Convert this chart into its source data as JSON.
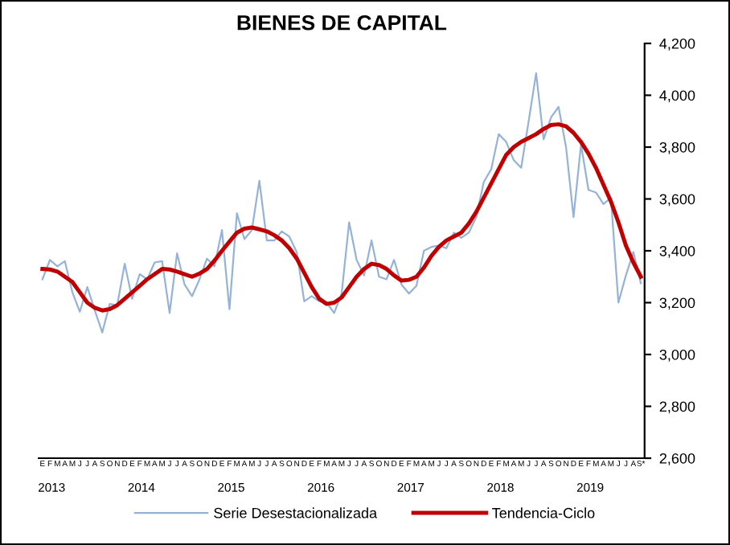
{
  "chart_data": {
    "type": "line",
    "title": "BIENES DE CAPITAL",
    "categories": [
      "E",
      "F",
      "M",
      "A",
      "M",
      "J",
      "J",
      "A",
      "S",
      "O",
      "N",
      "D",
      "E",
      "F",
      "M",
      "A",
      "M",
      "J",
      "J",
      "A",
      "S",
      "O",
      "N",
      "D",
      "E",
      "F",
      "M",
      "A",
      "M",
      "J",
      "J",
      "A",
      "S",
      "O",
      "N",
      "D",
      "E",
      "F",
      "M",
      "A",
      "M",
      "J",
      "J",
      "A",
      "S",
      "O",
      "N",
      "D",
      "E",
      "F",
      "M",
      "A",
      "M",
      "J",
      "J",
      "A",
      "S",
      "O",
      "N",
      "D",
      "E",
      "F",
      "M",
      "A",
      "M",
      "J",
      "J",
      "A",
      "S",
      "O",
      "N",
      "D",
      "E",
      "F",
      "M",
      "A",
      "M",
      "J",
      "J",
      "A",
      "S*"
    ],
    "series": [
      {
        "name": "Serie Desestacionalizada",
        "color": "#95b3d7",
        "values": [
          3290,
          3365,
          3340,
          3360,
          3240,
          3165,
          3260,
          3170,
          3085,
          3195,
          3190,
          3350,
          3215,
          3310,
          3290,
          3355,
          3360,
          3160,
          3390,
          3270,
          3225,
          3290,
          3370,
          3340,
          3480,
          3175,
          3545,
          3445,
          3480,
          3670,
          3440,
          3440,
          3475,
          3455,
          3395,
          3205,
          3225,
          3205,
          3200,
          3160,
          3235,
          3510,
          3365,
          3305,
          3440,
          3300,
          3290,
          3365,
          3270,
          3235,
          3265,
          3400,
          3415,
          3420,
          3410,
          3470,
          3450,
          3470,
          3530,
          3665,
          3715,
          3850,
          3820,
          3750,
          3720,
          3900,
          4085,
          3830,
          3915,
          3955,
          3800,
          3530,
          3810,
          3635,
          3625,
          3580,
          3605,
          3200,
          3305,
          3395,
          3275
        ]
      },
      {
        "name": "Tendencia-Ciclo",
        "color": "#c00000",
        "values": [
          3330,
          3328,
          3320,
          3300,
          3280,
          3240,
          3200,
          3180,
          3170,
          3175,
          3190,
          3215,
          3240,
          3265,
          3290,
          3310,
          3330,
          3328,
          3320,
          3310,
          3300,
          3312,
          3330,
          3362,
          3400,
          3435,
          3470,
          3485,
          3490,
          3483,
          3475,
          3460,
          3440,
          3410,
          3370,
          3315,
          3260,
          3215,
          3195,
          3200,
          3220,
          3260,
          3300,
          3330,
          3350,
          3345,
          3330,
          3305,
          3285,
          3288,
          3300,
          3335,
          3380,
          3415,
          3440,
          3455,
          3470,
          3505,
          3550,
          3605,
          3660,
          3715,
          3770,
          3800,
          3820,
          3835,
          3850,
          3870,
          3885,
          3888,
          3880,
          3855,
          3820,
          3775,
          3720,
          3655,
          3590,
          3510,
          3420,
          3355,
          3300
        ]
      }
    ],
    "ylim": [
      2600,
      4200
    ],
    "yticks": [
      {
        "value": 2600,
        "label": "2,600"
      },
      {
        "value": 2800,
        "label": "2,800"
      },
      {
        "value": 3000,
        "label": "3,000"
      },
      {
        "value": 3200,
        "label": "3,200"
      },
      {
        "value": 3400,
        "label": "3,400"
      },
      {
        "value": 3600,
        "label": "3,600"
      },
      {
        "value": 3800,
        "label": "3,800"
      },
      {
        "value": 4000,
        "label": "4,000"
      },
      {
        "value": 4200,
        "label": "4,200"
      }
    ],
    "annotations": [
      "2013",
      "2014",
      "2015",
      "2016",
      "2017",
      "2018",
      "2019"
    ],
    "legend": "bottom",
    "grid": false,
    "marker": "none",
    "line_style": "solid"
  }
}
